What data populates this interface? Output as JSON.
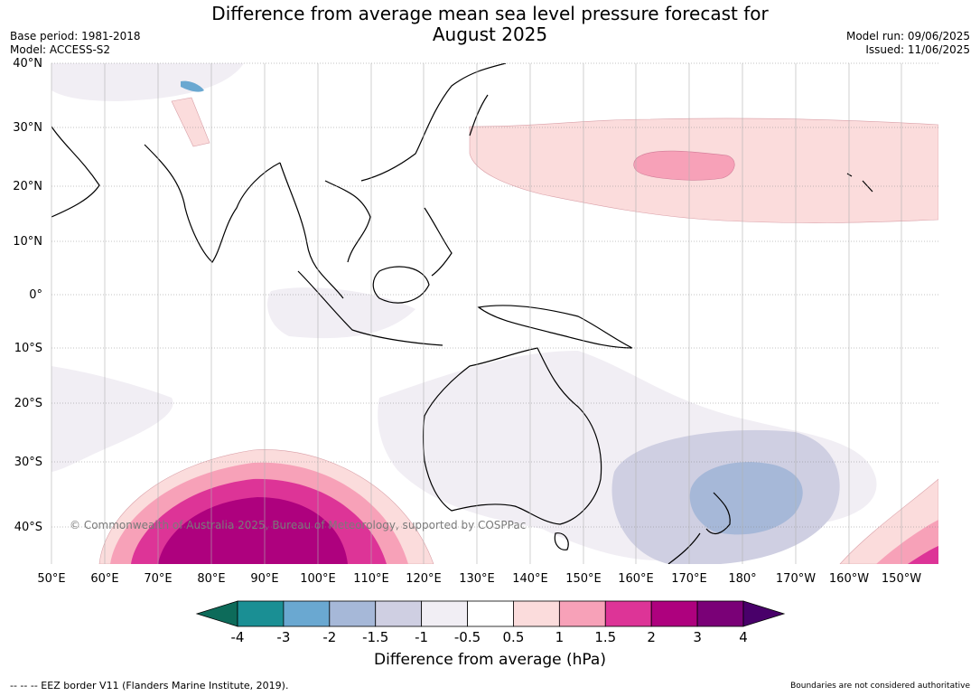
{
  "header": {
    "title_line1": "Difference from average mean sea level pressure forecast for",
    "title_line2": "August 2025",
    "base_period": "Base period: 1981-2018",
    "model": "Model: ACCESS-S2",
    "model_run": "Model run: 09/06/2025",
    "issued": "Issued: 11/06/2025"
  },
  "map": {
    "lat_labels": [
      "40°N",
      "30°N",
      "20°N",
      "10°N",
      "0°",
      "10°S",
      "20°S",
      "30°S",
      "40°S"
    ],
    "lon_labels": [
      "50°E",
      "60°E",
      "70°E",
      "80°E",
      "90°E",
      "100°E",
      "110°E",
      "120°E",
      "130°E",
      "140°E",
      "150°E",
      "160°E",
      "170°E",
      "180°",
      "170°W",
      "160°W",
      "150°W"
    ],
    "copyright": "© Commonwealth of Australia 2025, Bureau of Meteorology, supported by COSPPac"
  },
  "colorbar": {
    "tick_labels": [
      "-4",
      "-3",
      "-2",
      "-1.5",
      "-1",
      "-0.5",
      "0.5",
      "1",
      "1.5",
      "2",
      "3",
      "4"
    ],
    "colors": [
      "#1a8f94",
      "#6aa8d1",
      "#a6b8d8",
      "#cfcfe2",
      "#f1eef4",
      "#ffffff",
      "#fbdcdc",
      "#f7a1b8",
      "#dd3497",
      "#ae017e",
      "#7a0177"
    ],
    "under_color": "#0d6b5a",
    "over_color": "#49006a",
    "label": "Difference from average (hPa)"
  },
  "footer": {
    "eez": "--  --  -- EEZ border V11 (Flanders Marine Institute, 2019).",
    "disclaimer": "Boundaries are not considered authoritative"
  }
}
